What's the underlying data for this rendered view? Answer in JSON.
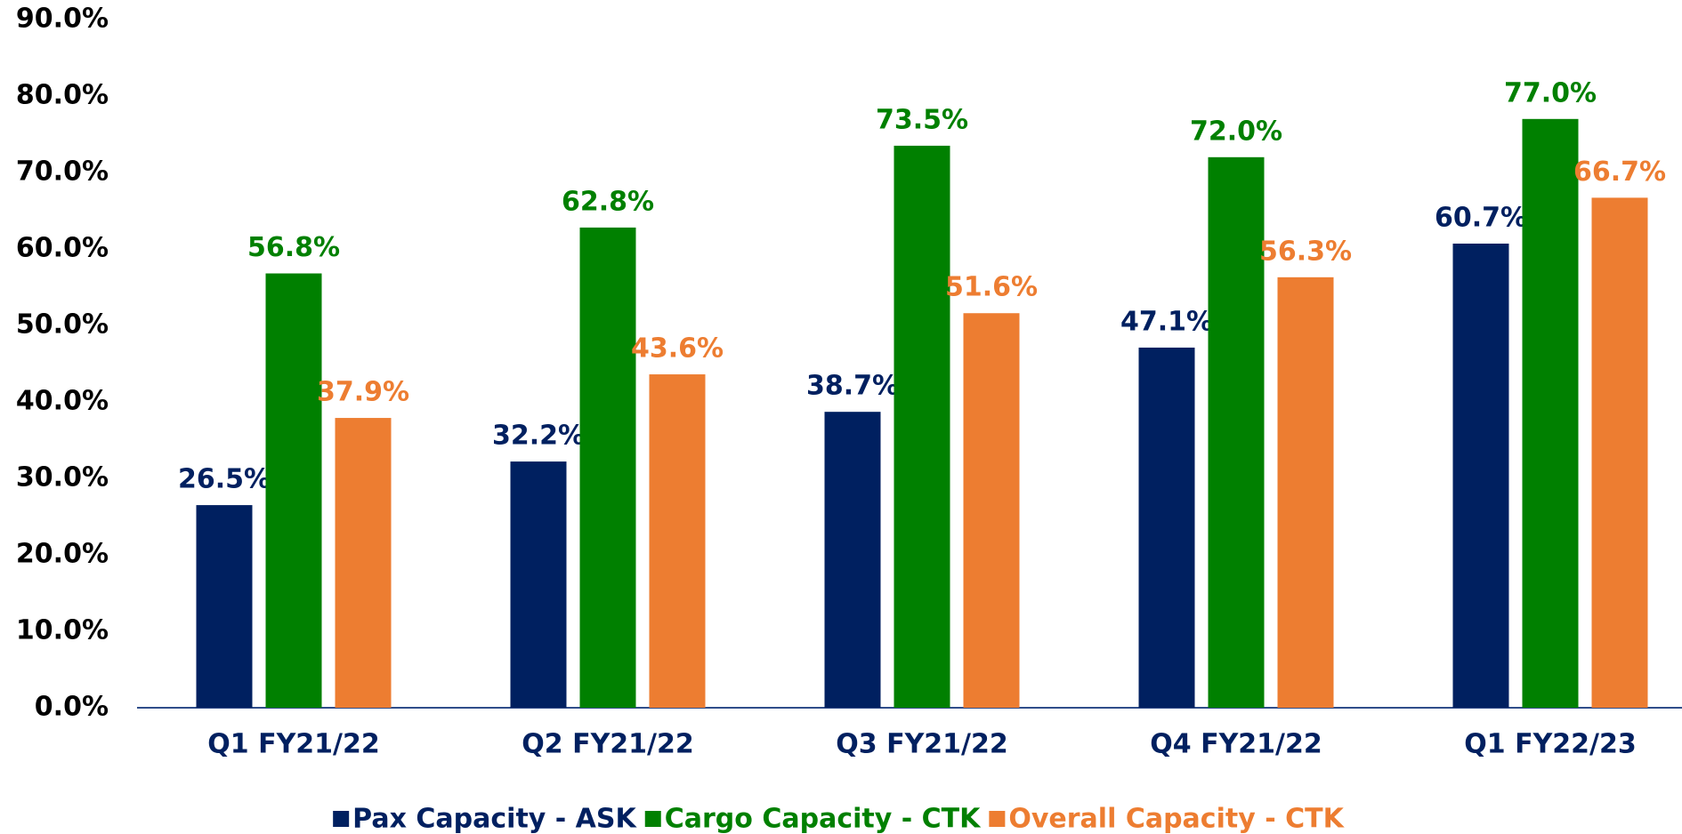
{
  "chart_data": {
    "type": "bar",
    "categories": [
      "Q1 FY21/22",
      "Q2 FY21/22",
      "Q3 FY21/22",
      "Q4 FY21/22",
      "Q1 FY22/23"
    ],
    "series": [
      {
        "name": "Pax Capacity - ASK",
        "color": "#002060",
        "values": [
          26.5,
          32.2,
          38.7,
          47.1,
          60.7
        ],
        "value_labels": [
          "26.5%",
          "32.2%",
          "38.7%",
          "47.1%",
          "60.7%"
        ]
      },
      {
        "name": "Cargo Capacity - CTK",
        "color": "#008000",
        "values": [
          56.8,
          62.8,
          73.5,
          72.0,
          77.0
        ],
        "value_labels": [
          "56.8%",
          "62.8%",
          "73.5%",
          "72.0%",
          "77.0%"
        ]
      },
      {
        "name": "Overall Capacity - CTK",
        "color": "#ED7D31",
        "values": [
          37.9,
          43.6,
          51.6,
          56.3,
          66.7
        ],
        "value_labels": [
          "37.9%",
          "43.6%",
          "51.6%",
          "56.3%",
          "66.7%"
        ]
      }
    ],
    "ylim": [
      0,
      90
    ],
    "yticks": [
      {
        "value": 0,
        "label": "0.0%"
      },
      {
        "value": 10,
        "label": "10.0%"
      },
      {
        "value": 20,
        "label": "20.0%"
      },
      {
        "value": 30,
        "label": "30.0%"
      },
      {
        "value": 40,
        "label": "40.0%"
      },
      {
        "value": 50,
        "label": "50.0%"
      },
      {
        "value": 60,
        "label": "60.0%"
      },
      {
        "value": 70,
        "label": "70.0%"
      },
      {
        "value": 80,
        "label": "80.0%"
      },
      {
        "value": 90,
        "label": "90.0%"
      }
    ],
    "grid": false,
    "legend": "bottom"
  }
}
